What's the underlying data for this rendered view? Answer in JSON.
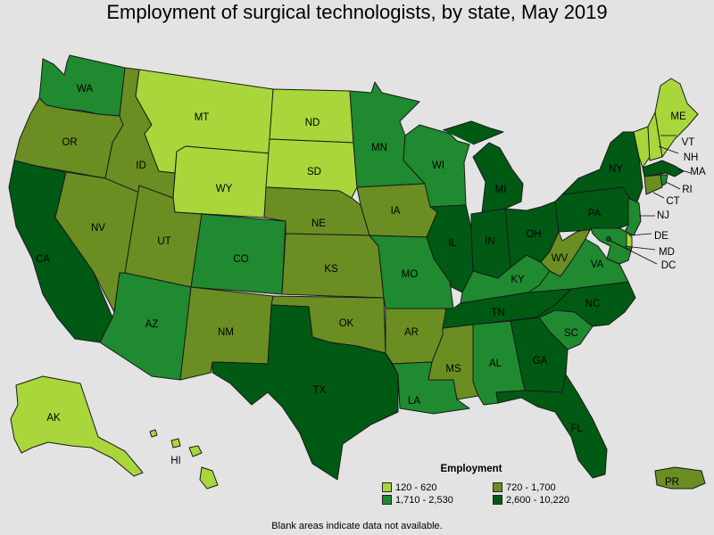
{
  "title": "Employment of surgical technologists, by state, May 2019",
  "legend": {
    "title": "Employment",
    "items": [
      {
        "label": "120 - 620",
        "color": "#a9d63b"
      },
      {
        "label": "720 - 1,700",
        "color": "#6b8e23"
      },
      {
        "label": "1,710 - 2,530",
        "color": "#1f8a30"
      },
      {
        "label": "2,600 - 10,220",
        "color": "#005a14"
      }
    ]
  },
  "footnote": "Blank areas indicate data not available.",
  "state_labels": {
    "WA": "WA",
    "OR": "OR",
    "CA": "CA",
    "NV": "NV",
    "ID": "ID",
    "MT": "MT",
    "WY": "WY",
    "UT": "UT",
    "AZ": "AZ",
    "CO": "CO",
    "NM": "NM",
    "ND": "ND",
    "SD": "SD",
    "NE": "NE",
    "KS": "KS",
    "OK": "OK",
    "TX": "TX",
    "MN": "MN",
    "IA": "IA",
    "MO": "MO",
    "AR": "AR",
    "LA": "LA",
    "WI": "WI",
    "IL": "IL",
    "MS": "MS",
    "MI": "MI",
    "IN": "IN",
    "KY": "KY",
    "TN": "TN",
    "AL": "AL",
    "OH": "OH",
    "GA": "GA",
    "FL": "FL",
    "SC": "SC",
    "NC": "NC",
    "VA": "VA",
    "WV": "WV",
    "PA": "PA",
    "NY": "NY",
    "ME": "ME",
    "VT": "VT",
    "NH": "NH",
    "MA": "MA",
    "RI": "RI",
    "CT": "CT",
    "NJ": "NJ",
    "DE": "DE",
    "MD": "MD",
    "DC": "DC",
    "AK": "AK",
    "HI": "HI",
    "PR": "PR"
  }
}
